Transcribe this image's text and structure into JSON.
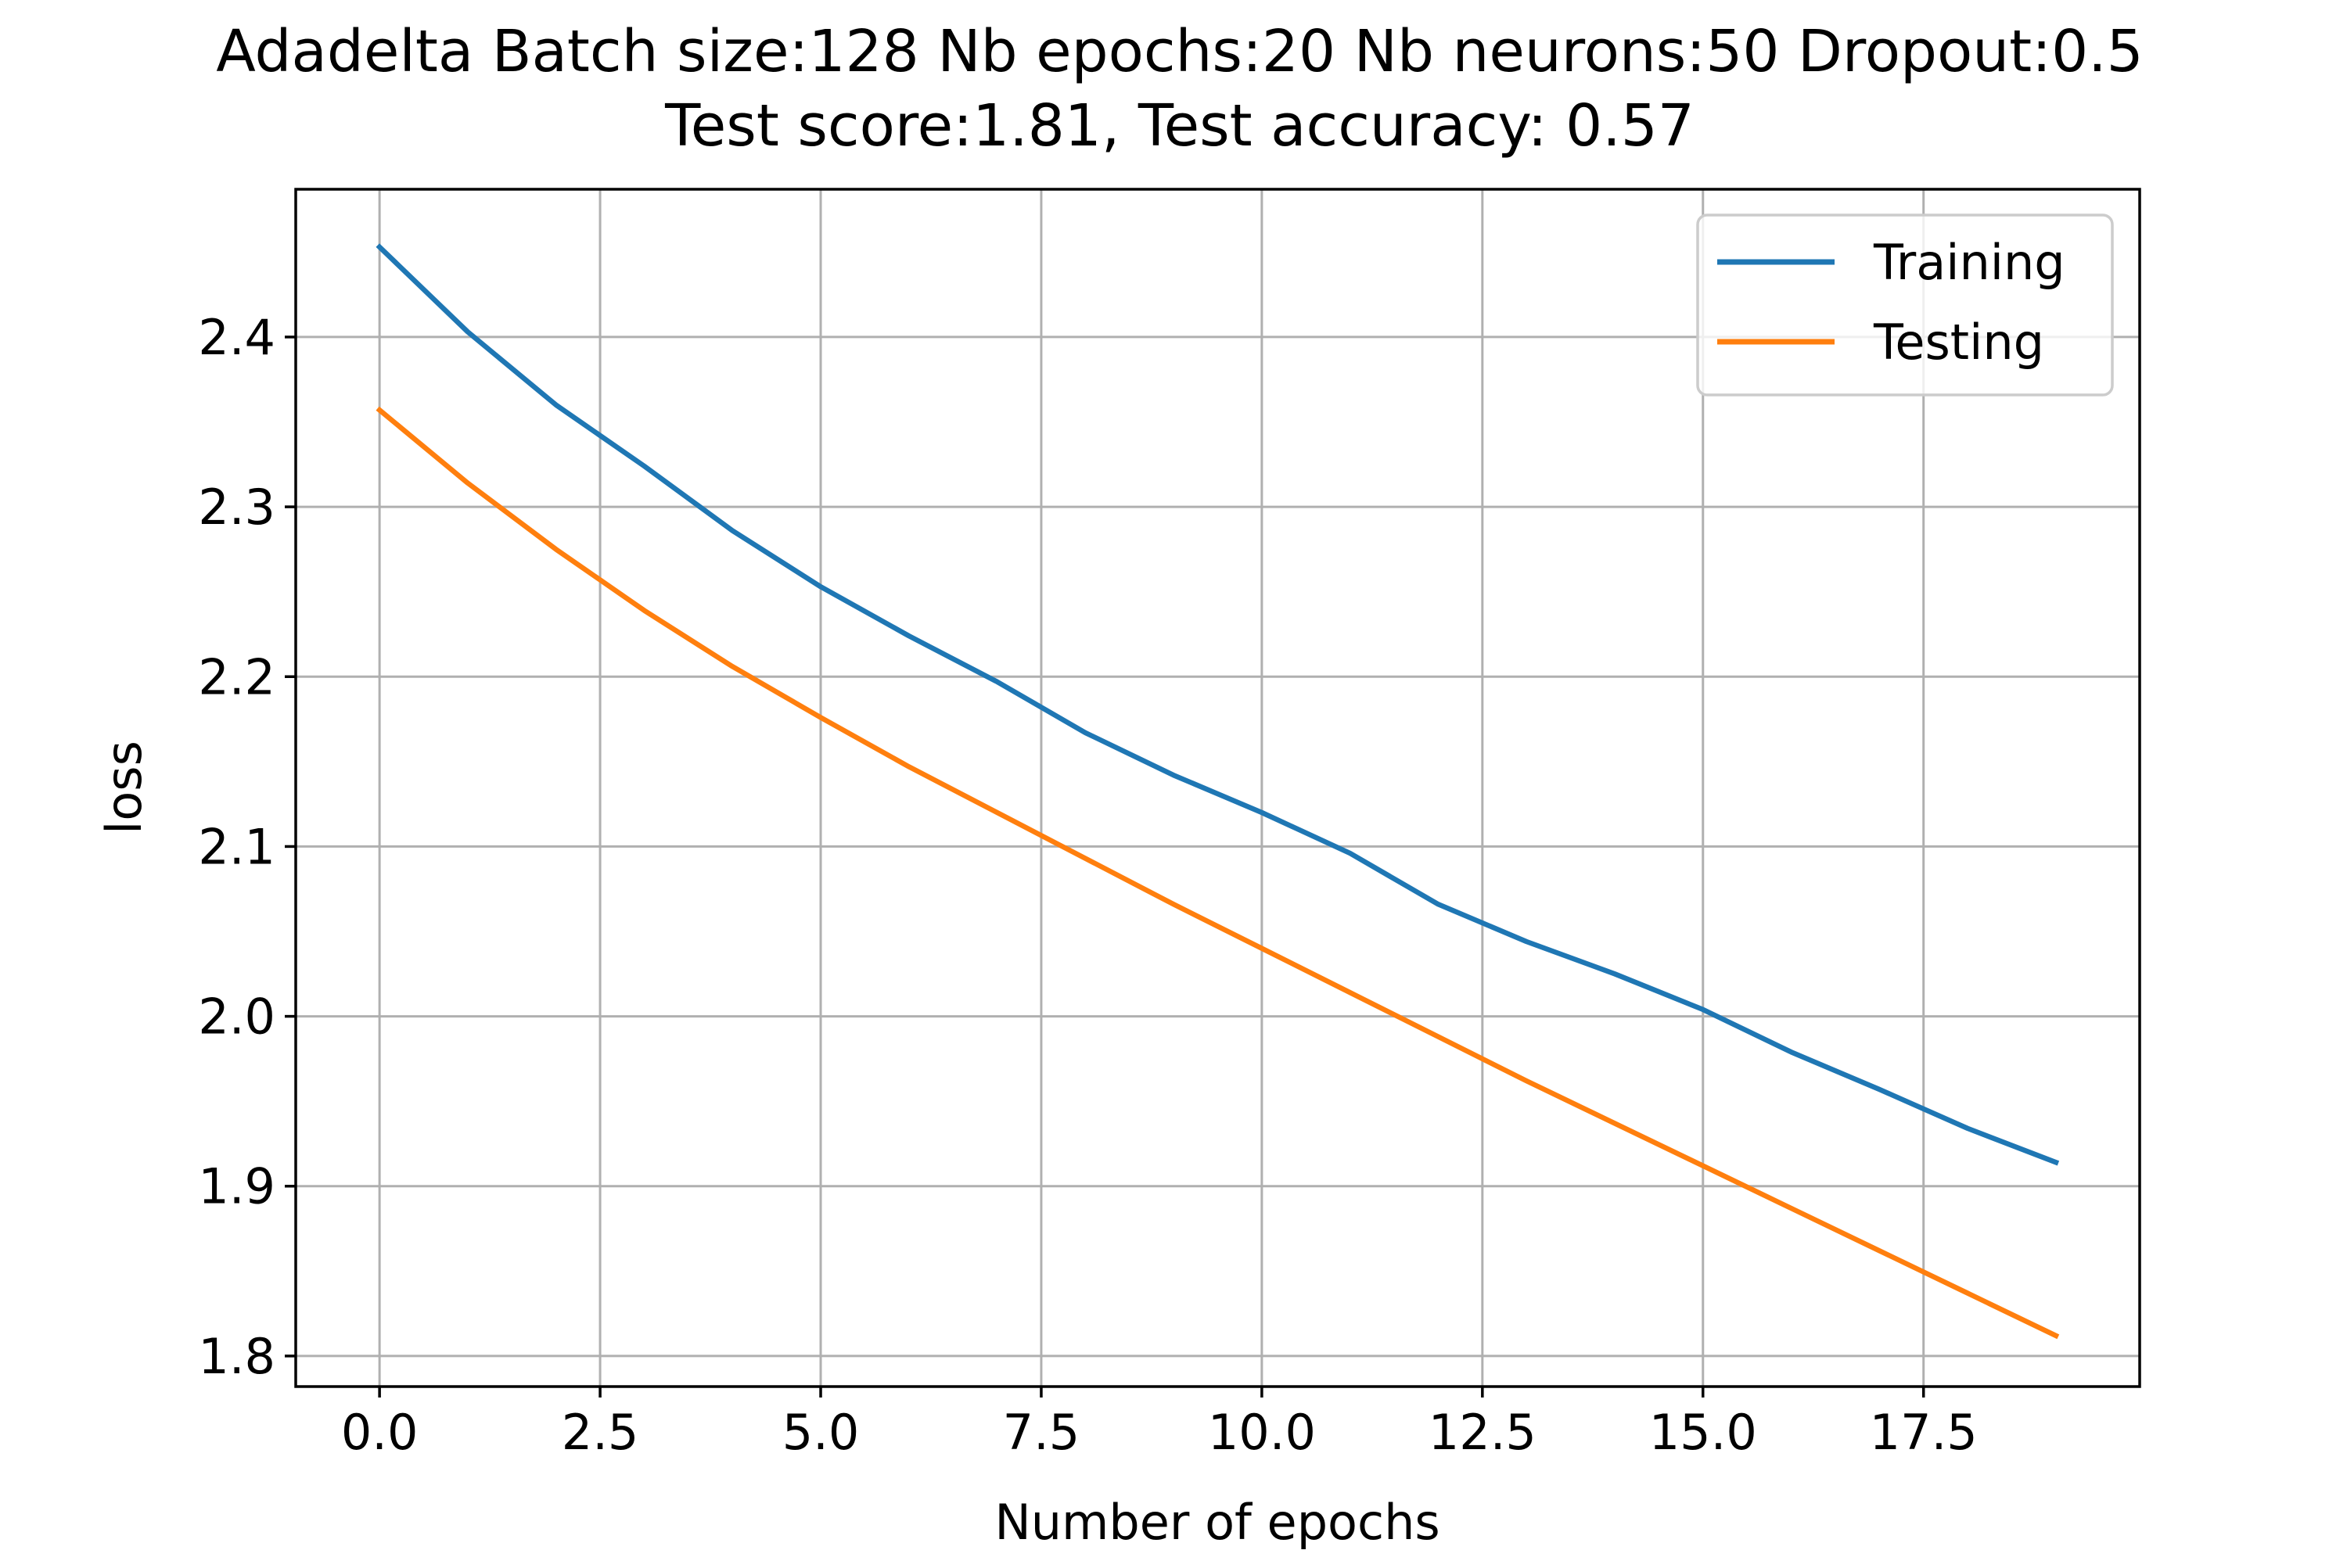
{
  "chart_data": {
    "type": "line",
    "title": "Adadelta Batch size:128 Nb epochs:20 Nb neurons:50 Dropout:0.5",
    "subtitle": "Test score:1.81, Test accuracy: 0.57",
    "xlabel": "Number of epochs",
    "ylabel": "loss",
    "xlim": [
      -0.95,
      19.95
    ],
    "ylim": [
      1.782,
      2.487
    ],
    "x_ticks": [
      0.0,
      2.5,
      5.0,
      7.5,
      10.0,
      12.5,
      15.0,
      17.5
    ],
    "x_tick_labels": [
      "0.0",
      "2.5",
      "5.0",
      "7.5",
      "10.0",
      "12.5",
      "15.0",
      "17.5"
    ],
    "y_ticks": [
      1.8,
      1.9,
      2.0,
      2.1,
      2.2,
      2.3,
      2.4
    ],
    "y_tick_labels": [
      "1.8",
      "1.9",
      "2.0",
      "2.1",
      "2.2",
      "2.3",
      "2.4"
    ],
    "grid": true,
    "legend_position": "top-right",
    "x": [
      0,
      1,
      2,
      3,
      4,
      5,
      6,
      7,
      8,
      9,
      10,
      11,
      12,
      13,
      14,
      15,
      16,
      17,
      18,
      19
    ],
    "series": [
      {
        "name": "Training",
        "color": "#1f77b4",
        "values": [
          2.453,
          2.403,
          2.36,
          2.324,
          2.286,
          2.253,
          2.224,
          2.197,
          2.167,
          2.142,
          2.12,
          2.096,
          2.066,
          2.044,
          2.025,
          2.004,
          1.979,
          1.957,
          1.934,
          1.914
        ]
      },
      {
        "name": "Testing",
        "color": "#ff7f0e",
        "values": [
          2.357,
          2.314,
          2.275,
          2.239,
          2.206,
          2.176,
          2.147,
          2.12,
          2.093,
          2.066,
          2.04,
          2.014,
          1.988,
          1.962,
          1.937,
          1.912,
          1.887,
          1.862,
          1.837,
          1.812
        ]
      }
    ]
  }
}
